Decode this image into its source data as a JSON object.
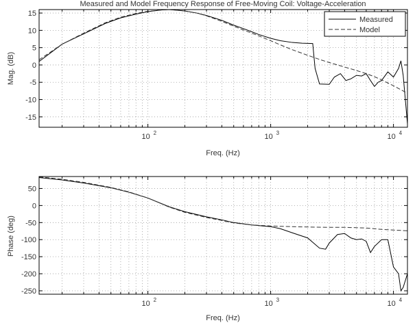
{
  "chart_data": [
    {
      "type": "line",
      "title": "Measured and Model Frequency Response of Free-Moving Coil: Voltage-Acceleration",
      "xlabel": "Freq. (Hz)",
      "ylabel": "Mag. (dB)",
      "xscale": "log",
      "xlim": [
        13,
        13000
      ],
      "ylim": [
        -18,
        16
      ],
      "grid": true,
      "legend": {
        "position": "top-right",
        "entries": [
          "Measured",
          "Model"
        ]
      },
      "x_ticks": [
        {
          "value": 100,
          "base": "10",
          "exp": "2"
        },
        {
          "value": 1000,
          "base": "10",
          "exp": "3"
        },
        {
          "value": 10000,
          "base": "10",
          "exp": "4"
        }
      ],
      "y_ticks": [
        {
          "value": 15,
          "label": "15"
        },
        {
          "value": 10,
          "label": "10"
        },
        {
          "value": 5,
          "label": "5"
        },
        {
          "value": 0,
          "label": "0"
        },
        {
          "value": -5,
          "label": "-5"
        },
        {
          "value": -10,
          "label": "-10"
        },
        {
          "value": -15,
          "label": "-15"
        }
      ],
      "series": [
        {
          "name": "Measured",
          "style": "solid",
          "color": "#000000",
          "x": [
            13,
            20,
            30,
            45,
            60,
            80,
            100,
            130,
            150,
            200,
            250,
            300,
            400,
            500,
            600,
            700,
            800,
            1000,
            1200,
            1500,
            1800,
            2200,
            2300,
            2500,
            3000,
            3300,
            3700,
            4100,
            4500,
            5000,
            5500,
            6000,
            6500,
            7000,
            7500,
            8000,
            9000,
            10000,
            11000,
            11500,
            12000,
            13000
          ],
          "y": [
            1,
            6,
            9,
            12,
            13.6,
            14.7,
            15.4,
            15.9,
            16.0,
            15.6,
            15.0,
            14.3,
            12.9,
            11.5,
            10.5,
            9.6,
            8.8,
            7.7,
            7.0,
            6.5,
            6.3,
            6.2,
            -1,
            -5.5,
            -5.6,
            -3.5,
            -2.5,
            -4.5,
            -4,
            -3,
            -3.2,
            -2.5,
            -4.5,
            -6.2,
            -5,
            -4.5,
            -2,
            -3.5,
            -1,
            1.2,
            -3,
            -17
          ]
        },
        {
          "name": "Model",
          "style": "dashed",
          "color": "#000000",
          "x": [
            13,
            20,
            30,
            45,
            60,
            80,
            100,
            130,
            150,
            200,
            250,
            300,
            400,
            500,
            600,
            700,
            800,
            1000,
            1200,
            1500,
            2000,
            2500,
            3000,
            4000,
            5000,
            6000,
            7000,
            8000,
            9000,
            10000,
            11000,
            12000,
            13000
          ],
          "y": [
            1.5,
            6,
            9.2,
            12.2,
            13.8,
            14.9,
            15.5,
            15.9,
            16.0,
            15.6,
            15.0,
            14.2,
            12.6,
            11.2,
            10.1,
            9.2,
            8.4,
            7.0,
            5.8,
            4.4,
            2.8,
            1.6,
            0.7,
            -0.6,
            -1.6,
            -2.5,
            -3.4,
            -4.3,
            -5.2,
            -6.0,
            -6.8,
            -7.5,
            -8.2
          ]
        }
      ]
    },
    {
      "type": "line",
      "xlabel": "Freq. (Hz)",
      "ylabel": "Phase (deg)",
      "xscale": "log",
      "xlim": [
        13,
        13000
      ],
      "ylim": [
        -260,
        85
      ],
      "grid": true,
      "x_ticks": [
        {
          "value": 100,
          "base": "10",
          "exp": "2"
        },
        {
          "value": 1000,
          "base": "10",
          "exp": "3"
        },
        {
          "value": 10000,
          "base": "10",
          "exp": "4"
        }
      ],
      "y_ticks": [
        {
          "value": 50,
          "label": "50"
        },
        {
          "value": 0,
          "label": "0"
        },
        {
          "value": -50,
          "label": "-50"
        },
        {
          "value": -100,
          "label": "-100"
        },
        {
          "value": -150,
          "label": "-150"
        },
        {
          "value": -200,
          "label": "-200"
        },
        {
          "value": -250,
          "label": "-250"
        }
      ],
      "series": [
        {
          "name": "Measured",
          "style": "solid",
          "color": "#000000",
          "x": [
            13,
            20,
            30,
            50,
            70,
            100,
            150,
            200,
            300,
            400,
            500,
            700,
            1000,
            1200,
            1500,
            2000,
            2500,
            2800,
            3000,
            3500,
            4000,
            4500,
            5000,
            5500,
            6000,
            6500,
            7000,
            8000,
            9000,
            10000,
            11000,
            11500,
            12000,
            13000
          ],
          "y": [
            82,
            75,
            66,
            52,
            39,
            22,
            -4,
            -18,
            -33,
            -42,
            -50,
            -57,
            -62,
            -68,
            -80,
            -95,
            -125,
            -128,
            -110,
            -85,
            -82,
            -95,
            -100,
            -98,
            -105,
            -138,
            -120,
            -100,
            -100,
            -180,
            -200,
            -250,
            -240,
            -200
          ]
        },
        {
          "name": "Model",
          "style": "dashed",
          "color": "#000000",
          "x": [
            13,
            20,
            30,
            50,
            70,
            100,
            150,
            200,
            300,
            400,
            500,
            700,
            1000,
            1500,
            2000,
            3000,
            4000,
            5000,
            6000,
            7000,
            8000,
            10000,
            13000
          ],
          "y": [
            84,
            77,
            68,
            53,
            40,
            22,
            -5,
            -20,
            -35,
            -44,
            -51,
            -57,
            -60,
            -62,
            -63,
            -64,
            -64,
            -65,
            -66,
            -68,
            -70,
            -72,
            -74
          ]
        }
      ]
    }
  ]
}
